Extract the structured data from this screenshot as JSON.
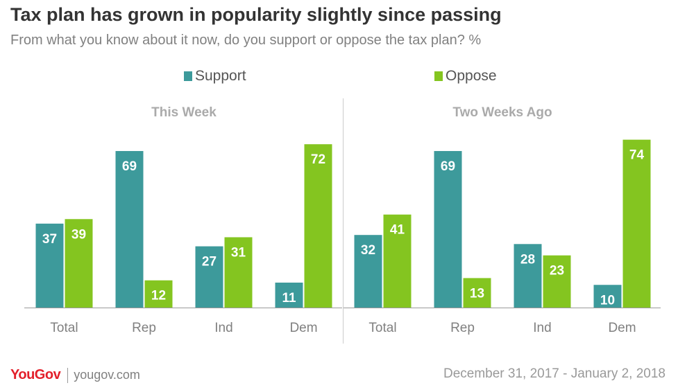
{
  "header": {
    "title": "Tax plan has grown in popularity slightly since passing",
    "subtitle": "From what you know about it now, do you support or oppose the tax plan? %"
  },
  "legend": [
    {
      "label": "Support",
      "color": "#3d9a9b"
    },
    {
      "label": "Oppose",
      "color": "#84c520"
    }
  ],
  "chart_data": {
    "type": "bar",
    "ylim": [
      0,
      80
    ],
    "grid": false,
    "legend_position": "top",
    "panels": [
      {
        "title": "This Week",
        "categories": [
          "Total",
          "Rep",
          "Ind",
          "Dem"
        ],
        "series": [
          {
            "name": "Support",
            "values": [
              37,
              69,
              27,
              11
            ]
          },
          {
            "name": "Oppose",
            "values": [
              39,
              12,
              31,
              72
            ]
          }
        ]
      },
      {
        "title": "Two Weeks Ago",
        "categories": [
          "Total",
          "Rep",
          "Ind",
          "Dem"
        ],
        "series": [
          {
            "name": "Support",
            "values": [
              32,
              69,
              28,
              10
            ]
          },
          {
            "name": "Oppose",
            "values": [
              41,
              13,
              23,
              74
            ]
          }
        ]
      }
    ]
  },
  "footer": {
    "logo": "YouGov",
    "site": "yougov.com",
    "date_range": "December 31, 2017 - January 2, 2018"
  }
}
